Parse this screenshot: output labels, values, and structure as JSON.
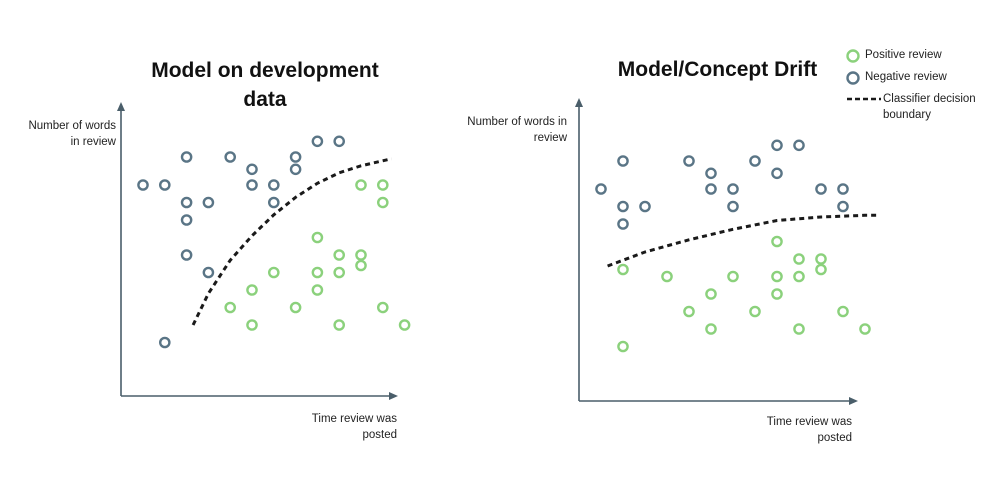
{
  "colors": {
    "positive": "#8bd17c",
    "negative": "#5a7586",
    "boundary": "#1a1a1a",
    "axis": "#4a5e6a"
  },
  "legend": {
    "positive_label": "Positive review",
    "negative_label": "Negative review",
    "boundary_label": "Classifier decision boundary"
  },
  "left_panel": {
    "title_line1": "Model on development",
    "title_line2": "data",
    "ylabel_line1": "Number of words",
    "ylabel_line2": "in review",
    "xlabel_line1": "Time review was",
    "xlabel_line2": "posted"
  },
  "right_panel": {
    "title": "Model/Concept Drift",
    "ylabel_line1": "Number of words in",
    "ylabel_line2": "review",
    "xlabel_line1": "Time review was",
    "xlabel_line2": "posted"
  },
  "chart_data": [
    {
      "type": "scatter",
      "title": "Model on development data",
      "xlabel": "Time review was posted",
      "ylabel": "Number of words in review",
      "xlim": [
        0,
        13
      ],
      "ylim": [
        0,
        14
      ],
      "series": [
        {
          "name": "Negative review",
          "color": "#5a7586",
          "points": [
            [
              1,
              11
            ],
            [
              2,
              12.6
            ],
            [
              4,
              12.6
            ],
            [
              5,
              11.9
            ],
            [
              7,
              12.6
            ],
            [
              8,
              13.5
            ],
            [
              9,
              13.5
            ],
            [
              0,
              11
            ],
            [
              2,
              10
            ],
            [
              3,
              10
            ],
            [
              5,
              11
            ],
            [
              6,
              11
            ],
            [
              6,
              10
            ],
            [
              7,
              11.9
            ],
            [
              2,
              9
            ],
            [
              2,
              7
            ],
            [
              3,
              6
            ],
            [
              1,
              2
            ]
          ]
        },
        {
          "name": "Positive review",
          "color": "#8bd17c",
          "points": [
            [
              10,
              11
            ],
            [
              11,
              11
            ],
            [
              11,
              10
            ],
            [
              8,
              8
            ],
            [
              9,
              7
            ],
            [
              10,
              7
            ],
            [
              10,
              6.4
            ],
            [
              6,
              6
            ],
            [
              8,
              6
            ],
            [
              9,
              6
            ],
            [
              5,
              5
            ],
            [
              8,
              5
            ],
            [
              4,
              4
            ],
            [
              7,
              4
            ],
            [
              11,
              4
            ],
            [
              5,
              3
            ],
            [
              9,
              3
            ],
            [
              12,
              3
            ]
          ]
        },
        {
          "name": "Classifier decision boundary",
          "color": "#1a1a1a",
          "style": "dashed",
          "points": [
            [
              2.3,
              3
            ],
            [
              3,
              4.8
            ],
            [
              4,
              6.7
            ],
            [
              5,
              8.1
            ],
            [
              6,
              9.3
            ],
            [
              7,
              10.3
            ],
            [
              8,
              11.1
            ],
            [
              9,
              11.7
            ],
            [
              10,
              12.1
            ],
            [
              11.4,
              12.5
            ]
          ]
        }
      ]
    },
    {
      "type": "scatter",
      "title": "Model/Concept Drift",
      "xlabel": "Time review was posted",
      "ylabel": "Number of words in review",
      "xlim": [
        0,
        13
      ],
      "ylim": [
        0,
        14
      ],
      "series": [
        {
          "name": "Negative review",
          "color": "#5a7586",
          "points": [
            [
              1,
              12.6
            ],
            [
              4,
              12.6
            ],
            [
              7,
              12.6
            ],
            [
              8,
              13.5
            ],
            [
              9,
              13.5
            ],
            [
              5,
              11.9
            ],
            [
              8,
              11.9
            ],
            [
              0,
              11
            ],
            [
              5,
              11
            ],
            [
              6,
              11
            ],
            [
              10,
              11
            ],
            [
              11,
              11
            ],
            [
              1,
              10
            ],
            [
              2,
              10
            ],
            [
              6,
              10
            ],
            [
              11,
              10
            ],
            [
              1,
              9
            ]
          ]
        },
        {
          "name": "Positive review",
          "color": "#8bd17c",
          "points": [
            [
              8,
              8
            ],
            [
              9,
              7
            ],
            [
              10,
              7
            ],
            [
              1,
              6.4
            ],
            [
              10,
              6.4
            ],
            [
              3,
              6
            ],
            [
              6,
              6
            ],
            [
              8,
              6
            ],
            [
              9,
              6
            ],
            [
              5,
              5
            ],
            [
              8,
              5
            ],
            [
              4,
              4
            ],
            [
              7,
              4
            ],
            [
              11,
              4
            ],
            [
              5,
              3
            ],
            [
              9,
              3
            ],
            [
              12,
              3
            ],
            [
              1,
              2
            ]
          ]
        },
        {
          "name": "Classifier decision boundary",
          "color": "#1a1a1a",
          "style": "dashed",
          "points": [
            [
              0.3,
              6.6
            ],
            [
              2,
              7.4
            ],
            [
              4,
              8.1
            ],
            [
              6,
              8.7
            ],
            [
              8,
              9.2
            ],
            [
              10,
              9.4
            ],
            [
              12,
              9.5
            ],
            [
              12.6,
              9.5
            ]
          ]
        }
      ]
    }
  ]
}
